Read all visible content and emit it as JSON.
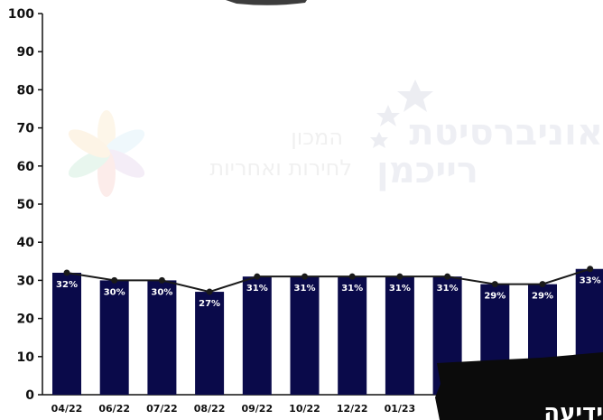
{
  "chart_data": {
    "type": "bar",
    "categories": [
      "04/22",
      "06/22",
      "07/22",
      "08/22",
      "09/22",
      "10/22",
      "12/22",
      "01/23",
      "",
      "",
      "",
      ""
    ],
    "values": [
      32,
      30,
      30,
      27,
      31,
      31,
      31,
      31,
      31,
      29,
      29,
      33
    ],
    "data_labels": [
      "32%",
      "30%",
      "30%",
      "27%",
      "31%",
      "31%",
      "31%",
      "31%",
      "31%",
      "29%",
      "29%",
      "33%"
    ],
    "line_overlay": true,
    "ylim": [
      0,
      100
    ],
    "yticks": [
      0,
      10,
      20,
      30,
      40,
      50,
      60,
      70,
      80,
      90,
      100
    ],
    "title": "",
    "xlabel": "",
    "ylabel": "",
    "grid": false,
    "colors": {
      "bar": "#0a0a4a",
      "line": "#1a1a1a",
      "marker": "#1a1a1a",
      "label_text": "#ffffff"
    }
  },
  "watermark": {
    "line1": "אוניברסיטת",
    "line2": "רייכמן",
    "sub1": "המכון",
    "sub2": "לחירות ואחריות"
  },
  "banner": {
    "text": "ידיעה"
  }
}
